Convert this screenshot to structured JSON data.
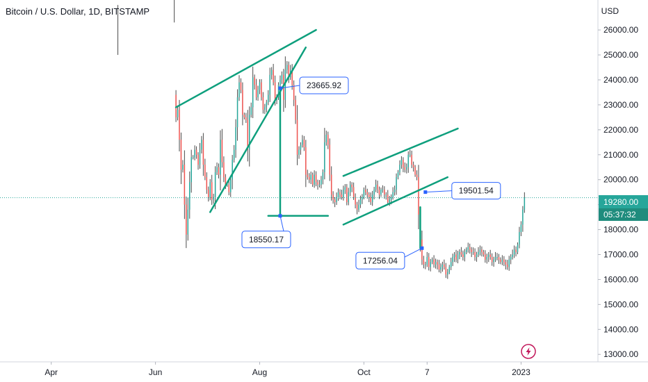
{
  "header": {
    "title": "Bitcoin / U.S. Dollar, 1D, BITSTAMP",
    "currency": "USD"
  },
  "colors": {
    "up": "#26a69a",
    "down": "#ef5350",
    "wick": "#4a4a4a",
    "pattern": "#0e9f7d",
    "callout": "#2962ff",
    "last_price_bg": "#26a69a",
    "time_bg": "#1f8c7d",
    "lightning": "#c2185b"
  },
  "price_badge": {
    "price": "19280.00",
    "countdown": "05:37:32",
    "value": 19280
  },
  "icons": {
    "lightning": "lightning-icon"
  },
  "chart_data": {
    "type": "candlestick",
    "title": "Bitcoin / U.S. Dollar, 1D, BITSTAMP",
    "ylim": [
      12700,
      27200
    ],
    "y_ticks": [
      13000,
      14000,
      15000,
      16000,
      17000,
      18000,
      19000,
      20000,
      21000,
      22000,
      23000,
      24000,
      25000,
      26000
    ],
    "y_tick_labels": [
      "13000.00",
      "14000.00",
      "15000.00",
      "16000.00",
      "17000.00",
      "18000.00",
      "19000.00",
      "20000.00",
      "21000.00",
      "22000.00",
      "23000.00",
      "24000.00",
      "25000.00",
      "26000.00"
    ],
    "x_ticks": [
      {
        "label": "Apr",
        "date": "2022-04-01"
      },
      {
        "label": "Jun",
        "date": "2022-06-01"
      },
      {
        "label": "Aug",
        "date": "2022-08-01"
      },
      {
        "label": "Oct",
        "date": "2022-10-01"
      },
      {
        "label": "7",
        "date": "2022-11-07"
      },
      {
        "label": "2023",
        "date": "2023-01-01"
      }
    ],
    "xlim": [
      "2022-03-02",
      "2023-02-15"
    ],
    "candles_start": "2022-06-13",
    "pre_gap_candles": [
      {
        "date": "2022-05-10",
        "high": 27000,
        "low": 25000
      },
      {
        "date": "2022-06-12",
        "high": 28000,
        "low": 26300
      }
    ],
    "closes": [
      22500,
      22800,
      21600,
      20400,
      20600,
      19000,
      17800,
      18800,
      19900,
      20900,
      20900,
      21200,
      21000,
      20600,
      21200,
      21600,
      20600,
      20100,
      19600,
      19300,
      19900,
      19200,
      19300,
      20300,
      20500,
      20200,
      21600,
      20700,
      20100,
      19800,
      19800,
      19500,
      20000,
      20800,
      21200,
      22100,
      23300,
      23900,
      23600,
      22600,
      22500,
      22400,
      21200,
      22600,
      22900,
      24100,
      23800,
      23300,
      23600,
      23900,
      23300,
      22800,
      22900,
      23100,
      23400,
      24200,
      24400,
      23900,
      23200,
      23300,
      23800,
      24000,
      24200,
      23200,
      24400,
      24600,
      24100,
      24400,
      23800,
      23200,
      22400,
      21000,
      21200,
      21400,
      21600,
      21300,
      20200,
      20100,
      20000,
      20200,
      19800,
      20200,
      19900,
      19800,
      19800,
      20000,
      20300,
      21500,
      21800,
      21400,
      20200,
      19400,
      19200,
      19100,
      19300,
      19500,
      19400,
      19300,
      19600,
      19700,
      19100,
      19500,
      19800,
      19700,
      19300,
      19000,
      18800,
      19000,
      19200,
      19300,
      19600,
      19500,
      19400,
      19300,
      19100,
      19400,
      19600,
      19800,
      19600,
      19400,
      19600,
      19600,
      19400,
      19400,
      19100,
      19200,
      19300,
      19500,
      19600,
      20100,
      20300,
      20600,
      20800,
      20500,
      20400,
      20500,
      21000,
      21000,
      20600,
      20500,
      20200,
      20100,
      18600,
      17600,
      16800,
      16600,
      16600,
      16900,
      16500,
      16700,
      16800,
      16600,
      16700,
      16600,
      16400,
      16500,
      16600,
      16500,
      16200,
      16300,
      16500,
      16700,
      16900,
      17000,
      16800,
      17000,
      17100,
      17000,
      16900,
      17100,
      17200,
      17300,
      17200,
      17100,
      17100,
      16900,
      17000,
      17100,
      17200,
      17100,
      17000,
      16800,
      16900,
      17000,
      16900,
      16700,
      16800,
      16900,
      16900,
      16800,
      16700,
      16800,
      16700,
      16600,
      16500,
      16800,
      16900,
      17000,
      17200,
      17100,
      17400,
      17900,
      18200,
      18800,
      19280
    ],
    "annotations": [
      {
        "label": "23665.92",
        "date": "2022-08-13",
        "price": 23665.92
      },
      {
        "label": "18550.17",
        "date": "2022-08-13",
        "price": 18550.17
      },
      {
        "label": "19501.54",
        "date": "2022-11-06",
        "price": 19501.54
      },
      {
        "label": "17256.04",
        "date": "2022-11-04",
        "price": 17256.04
      }
    ],
    "pattern_lines": [
      {
        "name": "rising-wedge-upper",
        "from": {
          "date": "2022-06-13",
          "price": 22900
        },
        "to": {
          "date": "2022-09-03",
          "price": 26000
        }
      },
      {
        "name": "rising-wedge-lower",
        "from": {
          "date": "2022-07-03",
          "price": 18700
        },
        "to": {
          "date": "2022-08-28",
          "price": 25300
        }
      },
      {
        "name": "measured-move-1",
        "from": {
          "date": "2022-08-13",
          "price": 23665.92
        },
        "to": {
          "date": "2022-08-13",
          "price": 18550.17
        }
      },
      {
        "name": "measured-move-1-base",
        "from": {
          "date": "2022-08-06",
          "price": 18550.17
        },
        "to": {
          "date": "2022-09-10",
          "price": 18550.17
        }
      },
      {
        "name": "channel-upper",
        "from": {
          "date": "2022-09-19",
          "price": 20150
        },
        "to": {
          "date": "2022-11-25",
          "price": 22050
        }
      },
      {
        "name": "channel-lower",
        "from": {
          "date": "2022-09-19",
          "price": 18200
        },
        "to": {
          "date": "2022-11-19",
          "price": 20100
        }
      },
      {
        "name": "measured-move-2",
        "from": {
          "date": "2022-11-03",
          "price": 18900
        },
        "to": {
          "date": "2022-11-03",
          "price": 17256.04
        }
      }
    ]
  }
}
